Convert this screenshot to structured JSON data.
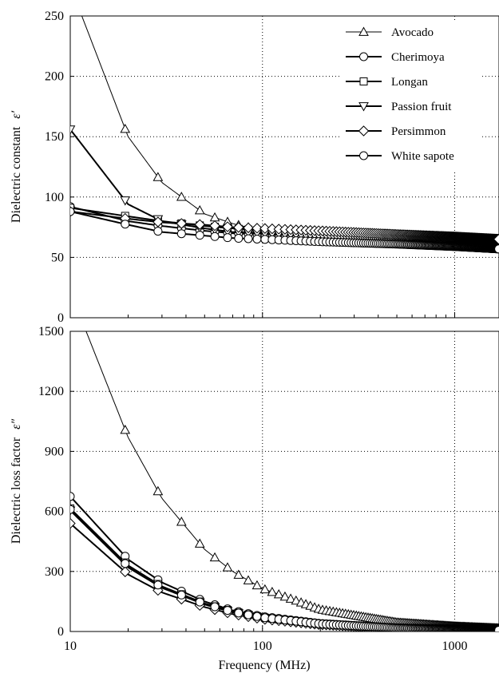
{
  "chart_data": {
    "type": "line",
    "x_scale": "log",
    "x_ticks": [
      10,
      100,
      1000
    ],
    "x_tick_labels": [
      "10",
      "100",
      "1000"
    ],
    "xlabel": "Frequency (MHz)",
    "xlim": [
      10,
      1700
    ],
    "grid": "dotted",
    "legend": {
      "placement": "top-right of upper panel",
      "entries": [
        {
          "name": "Avocado",
          "marker": "triangle-up"
        },
        {
          "name": "Cherimoya",
          "marker": "circle"
        },
        {
          "name": "Longan",
          "marker": "square"
        },
        {
          "name": "Passion fruit",
          "marker": "triangle-down"
        },
        {
          "name": "Persimmon",
          "marker": "diamond"
        },
        {
          "name": "White sapote",
          "marker": "circle"
        }
      ]
    },
    "panels": [
      {
        "ylabel_main": "Dielectric constant",
        "ylabel_symbol": "ε′",
        "ylim": [
          0,
          250
        ],
        "y_ticks": [
          0,
          50,
          100,
          150,
          200,
          250
        ],
        "y_tick_labels": [
          "0",
          "50",
          "100",
          "150",
          "200",
          "250"
        ],
        "series": [
          {
            "name": "Avocado",
            "x": [
              10,
              20,
              30,
              50,
              70,
              100,
              200,
              500,
              1000,
              1700
            ],
            "y": [
              275,
              150,
              112,
              86,
              78,
              72,
              68,
              66,
              64,
              62
            ]
          },
          {
            "name": "Cherimoya",
            "x": [
              10,
              20,
              30,
              50,
              70,
              100,
              200,
              500,
              1000,
              1700
            ],
            "y": [
              92,
              80,
              76,
              72,
              70,
              69,
              68,
              66,
              64,
              62
            ]
          },
          {
            "name": "Longan",
            "x": [
              10,
              20,
              30,
              50,
              70,
              100,
              200,
              500,
              1000,
              1700
            ],
            "y": [
              91,
              84,
              80,
              76,
              74,
              72,
              70,
              68,
              66,
              64
            ]
          },
          {
            "name": "Passion fruit",
            "x": [
              10,
              20,
              30,
              50,
              70,
              100,
              200,
              500,
              1000,
              1700
            ],
            "y": [
              156,
              94,
              80,
              74,
              71,
              70,
              68,
              66,
              64,
              62
            ]
          },
          {
            "name": "Persimmon",
            "x": [
              10,
              20,
              30,
              50,
              70,
              100,
              200,
              500,
              1000,
              1700
            ],
            "y": [
              88,
              82,
              79,
              77,
              75,
              74,
              72,
              69,
              67,
              65
            ]
          },
          {
            "name": "White sapote",
            "x": [
              10,
              20,
              30,
              50,
              70,
              100,
              200,
              500,
              1000,
              1700
            ],
            "y": [
              88,
              77,
              71,
              68,
              66,
              65,
              63,
              61,
              59,
              57
            ]
          }
        ]
      },
      {
        "ylabel_main": "Dielectric loss factor",
        "ylabel_symbol": "ε″",
        "ylim": [
          0,
          1500
        ],
        "y_ticks": [
          0,
          300,
          600,
          900,
          1200,
          1500
        ],
        "y_tick_labels": [
          "0",
          "300",
          "600",
          "900",
          "1200",
          "1500"
        ],
        "series": [
          {
            "name": "Avocado",
            "x": [
              10,
              20,
              30,
              50,
              70,
              100,
              200,
              500,
              1000,
              1700
            ],
            "y": [
              1700,
              970,
              665,
              410,
              300,
              215,
              110,
              45,
              25,
              15
            ]
          },
          {
            "name": "Cherimoya",
            "x": [
              10,
              20,
              30,
              50,
              70,
              100,
              200,
              500,
              1000,
              1700
            ],
            "y": [
              675,
              360,
              245,
              150,
              105,
              75,
              40,
              18,
              10,
              6
            ]
          },
          {
            "name": "Longan",
            "x": [
              10,
              20,
              30,
              50,
              70,
              100,
              200,
              500,
              1000,
              1700
            ],
            "y": [
              615,
              330,
              225,
              140,
              100,
              70,
              38,
              17,
              10,
              6
            ]
          },
          {
            "name": "Passion fruit",
            "x": [
              10,
              20,
              30,
              50,
              70,
              100,
              200,
              500,
              1000,
              1700
            ],
            "y": [
              605,
              320,
              218,
              135,
              96,
              68,
              37,
              16,
              9,
              6
            ]
          },
          {
            "name": "Persimmon",
            "x": [
              10,
              20,
              30,
              50,
              70,
              100,
              200,
              500,
              1000,
              1700
            ],
            "y": [
              540,
              285,
              195,
              122,
              87,
              62,
              34,
              15,
              9,
              6
            ]
          },
          {
            "name": "White sapote",
            "x": [
              10,
              20,
              30,
              50,
              70,
              100,
              200,
              500,
              1000,
              1700
            ],
            "y": [
              610,
              325,
              220,
              138,
              98,
              70,
              38,
              17,
              10,
              6
            ]
          }
        ]
      }
    ]
  }
}
